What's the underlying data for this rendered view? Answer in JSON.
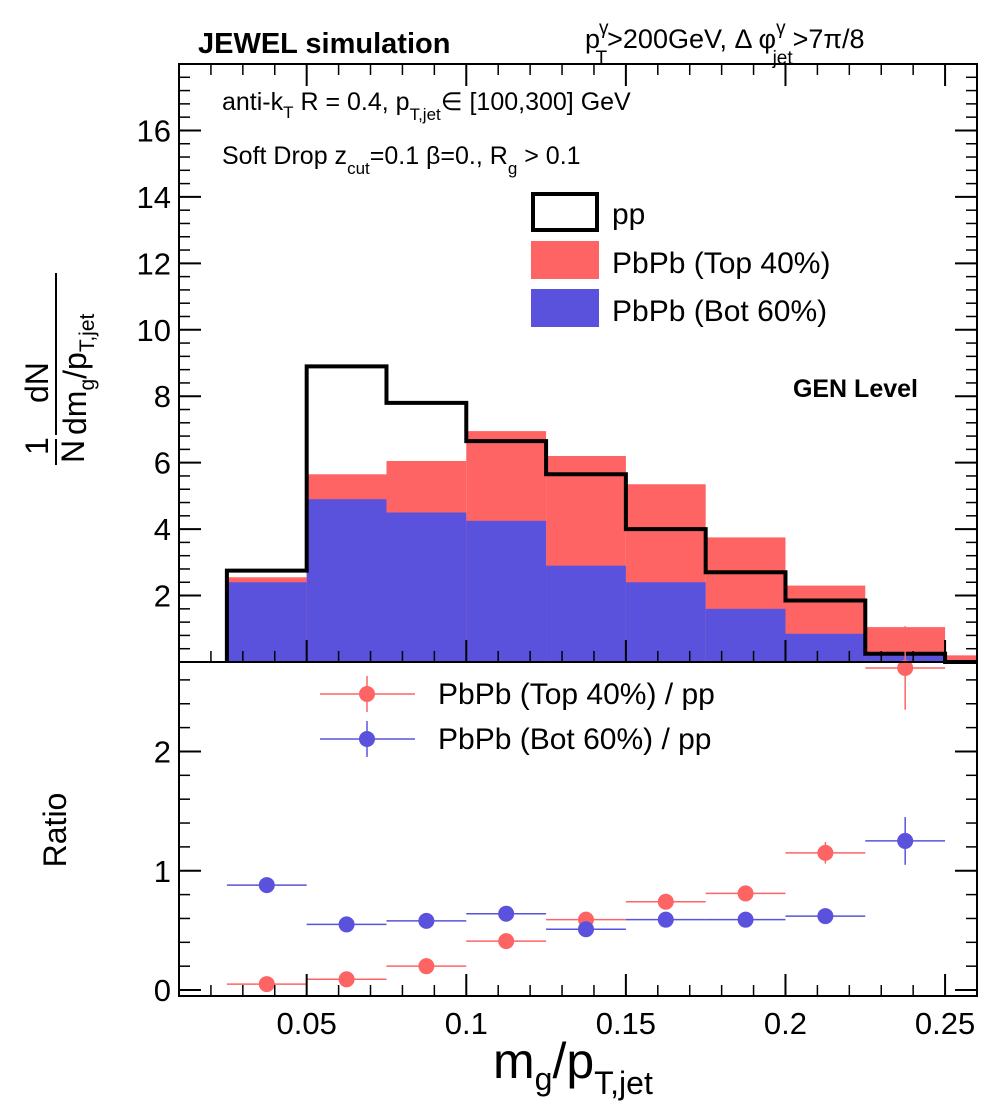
{
  "header": {
    "left": "JEWEL simulation",
    "cut_pt_base": "p",
    "cut_pt_sup": "γ",
    "cut_pt_sub": "T",
    "cut_pt_rest": ">200GeV, Δ φ",
    "cut_phi_sup": "γ",
    "cut_phi_sub": "jet",
    "cut_phi_rest": ">7π/8"
  },
  "annotations": {
    "line1_a": "anti-k",
    "line1_sub_T": "T",
    "line1_b": " R = 0.4, p",
    "line1_sub_ptjet": "T,jet",
    "line1_c": "∈ [100,300] GeV",
    "line2_a": "Soft Drop z",
    "line2_sub_cut": "cut",
    "line2_b": "=0.1 β=0., R",
    "line2_sub_g": "g",
    "line2_c": " > 0.1",
    "level": "GEN Level"
  },
  "ylabel_top": {
    "one": "1",
    "N": "N",
    "dN": "dN",
    "dm": "dm",
    "g": "g",
    "slash_p": "/p",
    "Tjet": "T,jet"
  },
  "ylabel_bottom": "Ratio",
  "xlabel": {
    "m": "m",
    "g": "g",
    "slash_p": "/p",
    "Tjet": "T,jet"
  },
  "colors": {
    "pp": "#000000",
    "top40": "#fe6464",
    "bot60": "#5a52dc"
  },
  "chart_data": [
    {
      "type": "area",
      "panel": "top",
      "bin_edges": [
        0.025,
        0.05,
        0.075,
        0.1,
        0.125,
        0.15,
        0.175,
        0.2,
        0.225,
        0.25,
        0.26
      ],
      "xlim": [
        0.01,
        0.26
      ],
      "ylim": [
        0,
        18
      ],
      "y_ticks": [
        2,
        4,
        6,
        8,
        10,
        12,
        14,
        16
      ],
      "series": [
        {
          "name": "pp",
          "style": "outline",
          "values": [
            2.75,
            8.9,
            7.8,
            6.65,
            5.65,
            4.0,
            2.7,
            1.85,
            0.25,
            0.0
          ]
        },
        {
          "name": "PbPb (Top 40%)",
          "style": "filled",
          "values": [
            2.55,
            5.65,
            6.05,
            6.95,
            6.2,
            5.35,
            3.75,
            2.3,
            1.05,
            0.2
          ]
        },
        {
          "name": "PbPb (Bot 60%)",
          "style": "filled",
          "values": [
            2.4,
            4.9,
            4.5,
            4.25,
            2.9,
            2.4,
            1.6,
            0.85,
            0.25,
            0.05
          ]
        }
      ],
      "legend": [
        "pp",
        "PbPb (Top 40%)",
        "PbPb (Bot 60%)"
      ],
      "legend_position": "top-right"
    },
    {
      "type": "scatter",
      "panel": "bottom",
      "xlabel": "m_g/p_T,jet",
      "ylabel": "Ratio",
      "xlim": [
        0.01,
        0.26
      ],
      "ylim": [
        -0.05,
        2.75
      ],
      "x_ticks": [
        0.05,
        0.1,
        0.15,
        0.2,
        0.25
      ],
      "x_tick_labels": [
        "0.05",
        "0.1",
        "0.15",
        "0.2",
        "0.25"
      ],
      "y_ticks": [
        0,
        1,
        2
      ],
      "x_halfwidth": 0.0125,
      "series": [
        {
          "name": "PbPb (Top 40%) / pp",
          "x": [
            0.0375,
            0.0625,
            0.0875,
            0.1125,
            0.1375,
            0.1625,
            0.1875,
            0.2125,
            0.2375
          ],
          "y": [
            0.05,
            0.09,
            0.2,
            0.41,
            0.59,
            0.74,
            0.81,
            1.15,
            2.7
          ],
          "y_err": [
            0.01,
            0.01,
            0.015,
            0.02,
            0.03,
            0.04,
            0.05,
            0.09,
            0.35
          ]
        },
        {
          "name": "PbPb (Bot 60%) / pp",
          "x": [
            0.0375,
            0.0625,
            0.0875,
            0.1125,
            0.1375,
            0.1625,
            0.1875,
            0.2125,
            0.2375
          ],
          "y": [
            0.88,
            0.55,
            0.58,
            0.64,
            0.51,
            0.59,
            0.59,
            0.62,
            1.25
          ],
          "y_err": [
            0.02,
            0.02,
            0.02,
            0.025,
            0.03,
            0.04,
            0.04,
            0.06,
            0.2
          ]
        }
      ],
      "legend": [
        "PbPb (Top 40%) / pp",
        "PbPb (Bot 60%) / pp"
      ],
      "legend_position": "top"
    }
  ]
}
